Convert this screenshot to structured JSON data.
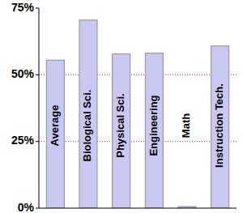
{
  "chart_data": {
    "type": "bar",
    "categories": [
      "Average",
      "Biological Sci.",
      "Physical Sci.",
      "Engineering",
      "Math",
      "Instruction Tech."
    ],
    "values": [
      55.5,
      70.5,
      57.8,
      58.1,
      0.6,
      60.8
    ],
    "color": "#c8c8f0",
    "ylim": [
      0,
      75
    ],
    "yticks": [
      {
        "value": 0,
        "label": "0%"
      },
      {
        "value": 25,
        "label": "25%"
      },
      {
        "value": 50,
        "label": "50%"
      },
      {
        "value": 75,
        "label": "75%"
      }
    ],
    "grid": true
  }
}
